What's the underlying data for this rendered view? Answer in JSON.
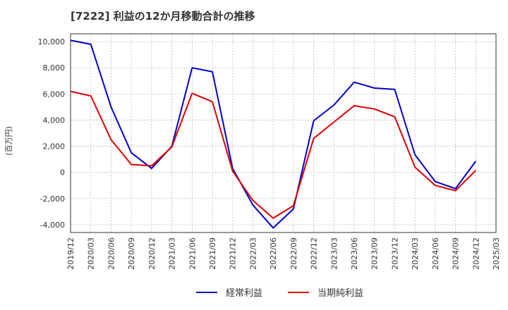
{
  "chart_data": {
    "type": "line",
    "title": "[7222]  利益の12か月移動合計の推移",
    "ylabel": "(百万円)",
    "xlabel": "",
    "ylim": [
      -4600,
      10600
    ],
    "yticks": [
      -4000,
      -2000,
      0,
      2000,
      4000,
      6000,
      8000,
      10000
    ],
    "ytick_labels": [
      "-4,000",
      "-2,000",
      "0",
      "2,000",
      "4,000",
      "6,000",
      "8,000",
      "10,000"
    ],
    "categories": [
      "2019/12",
      "2020/03",
      "2020/06",
      "2020/09",
      "2020/12",
      "2021/03",
      "2021/06",
      "2021/09",
      "2021/12",
      "2022/03",
      "2022/06",
      "2022/09",
      "2022/12",
      "2023/03",
      "2023/06",
      "2023/09",
      "2023/12",
      "2024/03",
      "2024/06",
      "2024/09",
      "2024/12",
      "2025/03"
    ],
    "grid": true,
    "series": [
      {
        "name": "経常利益",
        "color": "#0000cc",
        "values": [
          10100,
          9800,
          5000,
          1500,
          300,
          2000,
          8000,
          7700,
          300,
          -2500,
          -4250,
          -2800,
          3950,
          5150,
          6900,
          6450,
          6350,
          1350,
          -700,
          -1250,
          850,
          null
        ]
      },
      {
        "name": "当期純利益",
        "color": "#e00000",
        "values": [
          6200,
          5850,
          2500,
          600,
          500,
          1950,
          6050,
          5400,
          100,
          -2150,
          -3500,
          -2550,
          2600,
          3850,
          5100,
          4850,
          4250,
          400,
          -1000,
          -1400,
          150,
          null
        ]
      }
    ],
    "legend_position": "bottom"
  }
}
